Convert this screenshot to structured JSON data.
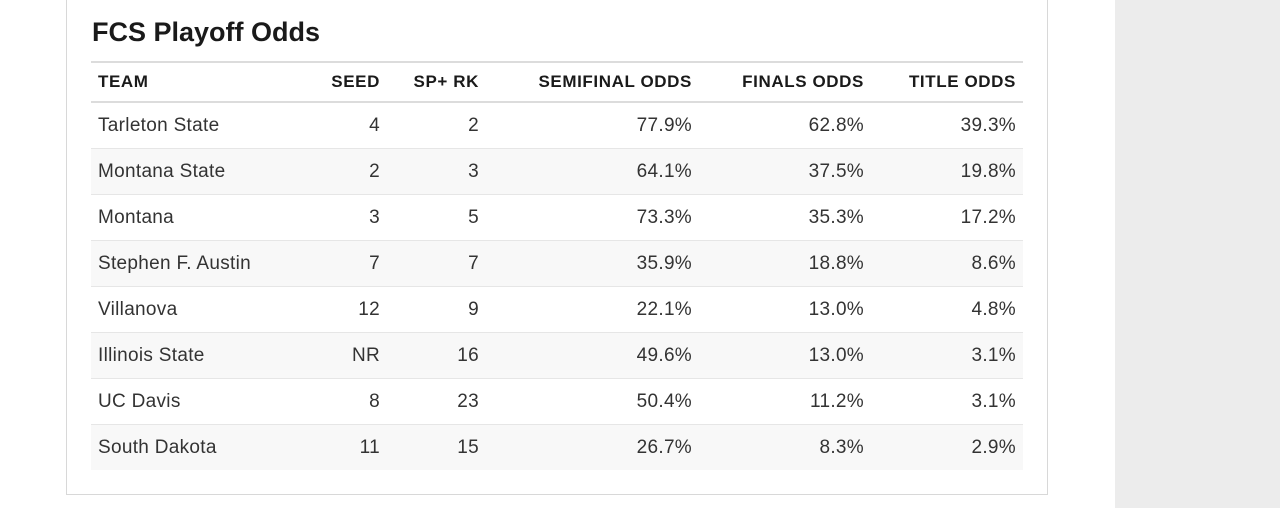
{
  "title": "FCS Playoff Odds",
  "table": {
    "headers": [
      "TEAM",
      "SEED",
      "SP+ RK",
      "SEMIFINAL ODDS",
      "FINALS ODDS",
      "TITLE ODDS"
    ],
    "rows": [
      [
        "Tarleton State",
        "4",
        "2",
        "77.9%",
        "62.8%",
        "39.3%"
      ],
      [
        "Montana State",
        "2",
        "3",
        "64.1%",
        "37.5%",
        "19.8%"
      ],
      [
        "Montana",
        "3",
        "5",
        "73.3%",
        "35.3%",
        "17.2%"
      ],
      [
        "Stephen F. Austin",
        "7",
        "7",
        "35.9%",
        "18.8%",
        "8.6%"
      ],
      [
        "Villanova",
        "12",
        "9",
        "22.1%",
        "13.0%",
        "4.8%"
      ],
      [
        "Illinois State",
        "NR",
        "16",
        "49.6%",
        "13.0%",
        "3.1%"
      ],
      [
        "UC Davis",
        "8",
        "23",
        "50.4%",
        "11.2%",
        "3.1%"
      ],
      [
        "South Dakota",
        "11",
        "15",
        "26.7%",
        "8.3%",
        "2.9%"
      ]
    ]
  }
}
